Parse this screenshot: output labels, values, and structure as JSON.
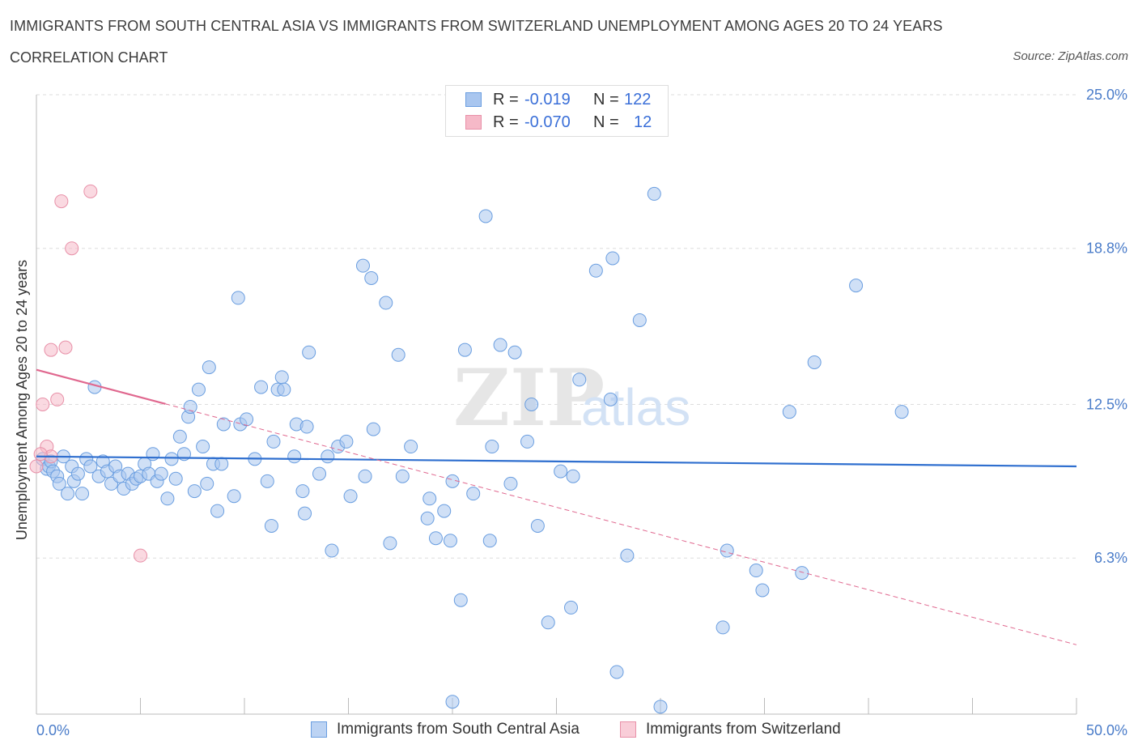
{
  "header": {
    "title": "IMMIGRANTS FROM SOUTH CENTRAL ASIA VS IMMIGRANTS FROM SWITZERLAND UNEMPLOYMENT AMONG AGES 20 TO 24 YEARS",
    "subtitle": "CORRELATION CHART",
    "source": "Source: ZipAtlas.com"
  },
  "legend": {
    "rows": [
      {
        "r_label": "R =",
        "r_value": "-0.019",
        "n_label": "N =",
        "n_value": "122"
      },
      {
        "r_label": "R =",
        "r_value": "-0.070",
        "n_label": "N =",
        "n_value": "12"
      }
    ]
  },
  "bottom_legend": {
    "series1": "Immigrants from South Central Asia",
    "series2": "Immigrants from Switzerland"
  },
  "watermark": {
    "zip": "ZIP",
    "atlas": "atlas"
  },
  "colors": {
    "blue_fill": "#a9c6ef",
    "blue_stroke": "#6a9ee0",
    "blue_line": "#2f6fcf",
    "pink_fill": "#f6b9c8",
    "pink_stroke": "#e890a8",
    "pink_line": "#e0688f",
    "grid": "#dddddd",
    "axis_text": "#4a7cc9"
  },
  "chart_data": {
    "type": "scatter",
    "title": "IMMIGRANTS FROM SOUTH CENTRAL ASIA VS IMMIGRANTS FROM SWITZERLAND UNEMPLOYMENT AMONG AGES 20 TO 24 YEARS",
    "xlabel": "",
    "ylabel": "Unemployment Among Ages 20 to 24 years",
    "xlim": [
      0,
      50
    ],
    "ylim": [
      0,
      25
    ],
    "x_tick_labels": [
      "0.0%",
      "50.0%"
    ],
    "y_ticks": [
      6.3,
      12.5,
      18.8,
      25.0
    ],
    "y_tick_labels": [
      "6.3%",
      "12.5%",
      "18.8%",
      "25.0%"
    ],
    "grid": true,
    "legend_position": "top-center",
    "series": [
      {
        "name": "Immigrants from South Central Asia",
        "R": -0.019,
        "N": 122,
        "trend": {
          "x": [
            0,
            50
          ],
          "y": [
            10.4,
            10.0
          ],
          "style": "solid"
        },
        "points": [
          [
            0.3,
            10.3
          ],
          [
            0.5,
            9.9
          ],
          [
            0.6,
            10.0
          ],
          [
            0.7,
            10.2
          ],
          [
            0.8,
            9.8
          ],
          [
            1.0,
            9.6
          ],
          [
            1.1,
            9.3
          ],
          [
            1.3,
            10.4
          ],
          [
            1.5,
            8.9
          ],
          [
            1.7,
            10.0
          ],
          [
            1.8,
            9.4
          ],
          [
            2.0,
            9.7
          ],
          [
            2.2,
            8.9
          ],
          [
            2.4,
            10.3
          ],
          [
            2.6,
            10.0
          ],
          [
            2.8,
            13.2
          ],
          [
            3.0,
            9.6
          ],
          [
            3.2,
            10.2
          ],
          [
            3.4,
            9.8
          ],
          [
            3.6,
            9.3
          ],
          [
            3.8,
            10.0
          ],
          [
            4.0,
            9.6
          ],
          [
            4.2,
            9.1
          ],
          [
            4.4,
            9.7
          ],
          [
            4.6,
            9.3
          ],
          [
            4.8,
            9.5
          ],
          [
            5.0,
            9.6
          ],
          [
            5.2,
            10.1
          ],
          [
            5.4,
            9.7
          ],
          [
            5.6,
            10.5
          ],
          [
            5.8,
            9.4
          ],
          [
            6.0,
            9.7
          ],
          [
            6.3,
            8.7
          ],
          [
            6.5,
            10.3
          ],
          [
            6.7,
            9.5
          ],
          [
            6.9,
            11.2
          ],
          [
            7.1,
            10.5
          ],
          [
            7.3,
            12.0
          ],
          [
            7.4,
            12.4
          ],
          [
            7.6,
            9.0
          ],
          [
            7.8,
            13.1
          ],
          [
            8.0,
            10.8
          ],
          [
            8.2,
            9.3
          ],
          [
            8.3,
            14.0
          ],
          [
            8.5,
            10.1
          ],
          [
            8.7,
            8.2
          ],
          [
            8.9,
            10.1
          ],
          [
            9.0,
            11.7
          ],
          [
            9.5,
            8.8
          ],
          [
            9.7,
            16.8
          ],
          [
            9.8,
            11.7
          ],
          [
            10.1,
            11.9
          ],
          [
            10.5,
            10.3
          ],
          [
            10.8,
            13.2
          ],
          [
            11.1,
            9.4
          ],
          [
            11.3,
            7.6
          ],
          [
            11.4,
            11.0
          ],
          [
            11.6,
            13.1
          ],
          [
            11.8,
            13.6
          ],
          [
            11.9,
            13.1
          ],
          [
            12.4,
            10.4
          ],
          [
            12.5,
            11.7
          ],
          [
            12.8,
            9.0
          ],
          [
            12.9,
            8.1
          ],
          [
            13.0,
            11.6
          ],
          [
            13.1,
            14.6
          ],
          [
            13.6,
            9.7
          ],
          [
            14.0,
            10.4
          ],
          [
            14.2,
            6.6
          ],
          [
            14.5,
            10.8
          ],
          [
            14.9,
            11.0
          ],
          [
            15.1,
            8.8
          ],
          [
            15.8,
            9.6
          ],
          [
            15.7,
            18.1
          ],
          [
            16.1,
            17.6
          ],
          [
            16.2,
            11.5
          ],
          [
            16.8,
            16.6
          ],
          [
            17.4,
            14.5
          ],
          [
            17.6,
            9.6
          ],
          [
            17.0,
            6.9
          ],
          [
            18.0,
            10.8
          ],
          [
            18.9,
            8.7
          ],
          [
            18.8,
            7.9
          ],
          [
            19.2,
            7.1
          ],
          [
            19.6,
            8.2
          ],
          [
            20.0,
            9.4
          ],
          [
            19.9,
            7.0
          ],
          [
            20.4,
            4.6
          ],
          [
            20.6,
            14.7
          ],
          [
            20.0,
            0.5
          ],
          [
            21.0,
            8.9
          ],
          [
            21.6,
            20.1
          ],
          [
            21.9,
            10.8
          ],
          [
            22.3,
            14.9
          ],
          [
            21.8,
            7.0
          ],
          [
            22.8,
            9.3
          ],
          [
            23.0,
            14.6
          ],
          [
            23.6,
            11.0
          ],
          [
            23.8,
            12.5
          ],
          [
            24.1,
            7.6
          ],
          [
            24.6,
            3.7
          ],
          [
            25.2,
            9.8
          ],
          [
            25.7,
            4.3
          ],
          [
            26.1,
            13.5
          ],
          [
            25.8,
            9.6
          ],
          [
            26.9,
            17.9
          ],
          [
            27.6,
            12.7
          ],
          [
            27.7,
            18.4
          ],
          [
            27.9,
            1.7
          ],
          [
            28.4,
            6.4
          ],
          [
            29.0,
            15.9
          ],
          [
            29.7,
            21.0
          ],
          [
            30.0,
            0.3
          ],
          [
            33.0,
            3.5
          ],
          [
            33.2,
            6.6
          ],
          [
            34.6,
            5.8
          ],
          [
            34.9,
            5.0
          ],
          [
            36.2,
            12.2
          ],
          [
            36.8,
            5.7
          ],
          [
            37.4,
            14.2
          ],
          [
            39.4,
            17.3
          ],
          [
            41.6,
            12.2
          ]
        ]
      },
      {
        "name": "Immigrants from Switzerland",
        "R": -0.07,
        "N": 12,
        "trend": {
          "x": [
            0,
            50
          ],
          "y": [
            13.9,
            2.8
          ],
          "solid_until_x": 6.2,
          "style": "solid-then-dashed"
        },
        "points": [
          [
            0.0,
            10.0
          ],
          [
            0.3,
            12.5
          ],
          [
            0.5,
            10.8
          ],
          [
            0.7,
            10.4
          ],
          [
            0.7,
            14.7
          ],
          [
            1.0,
            12.7
          ],
          [
            1.2,
            20.7
          ],
          [
            1.4,
            14.8
          ],
          [
            1.7,
            18.8
          ],
          [
            2.6,
            21.1
          ],
          [
            5.0,
            6.4
          ],
          [
            0.2,
            10.5
          ]
        ]
      }
    ]
  }
}
